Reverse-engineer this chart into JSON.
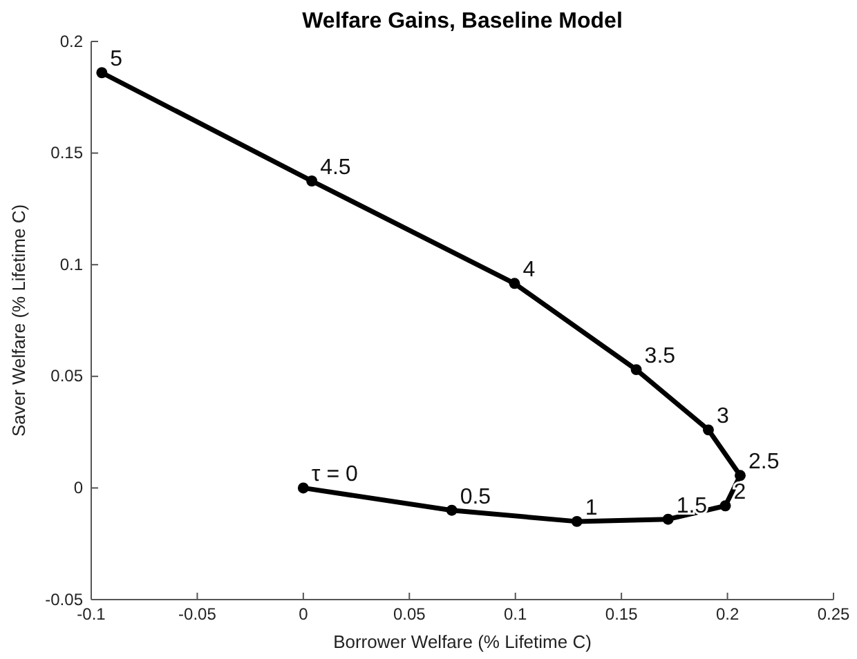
{
  "chart_data": {
    "type": "line",
    "title": "Welfare Gains, Baseline Model",
    "xlabel": "Borrower Welfare (% Lifetime C)",
    "ylabel": "Saver Welfare (% Lifetime C)",
    "x": [
      0,
      0.07,
      0.129,
      0.172,
      0.199,
      0.206,
      0.191,
      0.157,
      0.0996,
      0.004,
      -0.095
    ],
    "series": [
      {
        "color": "#000000",
        "values": [
          0,
          -0.01,
          -0.015,
          -0.014,
          -0.008,
          0.0056,
          0.026,
          0.053,
          0.0916,
          0.1375,
          0.186
        ]
      }
    ],
    "marker": "circle",
    "line_style": "solid",
    "grid": false,
    "xlim": [
      -0.1,
      0.25
    ],
    "xticks": [
      -0.1,
      -0.05,
      0,
      0.05,
      0.1,
      0.15,
      0.2,
      0.25
    ],
    "ylim": [
      -0.05,
      0.2
    ],
    "yticks": [
      -0.05,
      0,
      0.05,
      0.1,
      0.15,
      0.2
    ],
    "annotations": [
      {
        "text": "τ = 0",
        "x": 0,
        "y": 0
      },
      {
        "text": "0.5",
        "x": 0.07,
        "y": -0.01
      },
      {
        "text": "1",
        "x": 0.129,
        "y": -0.015
      },
      {
        "text": "1.5",
        "x": 0.172,
        "y": -0.014
      },
      {
        "text": "2",
        "x": 0.199,
        "y": -0.008
      },
      {
        "text": "2.5",
        "x": 0.206,
        "y": 0.0056
      },
      {
        "text": "3",
        "x": 0.191,
        "y": 0.026
      },
      {
        "text": "3.5",
        "x": 0.157,
        "y": 0.053
      },
      {
        "text": "4",
        "x": 0.0996,
        "y": 0.0916
      },
      {
        "text": "4.5",
        "x": 0.004,
        "y": 0.1375
      },
      {
        "text": "5",
        "x": -0.095,
        "y": 0.186
      }
    ]
  }
}
